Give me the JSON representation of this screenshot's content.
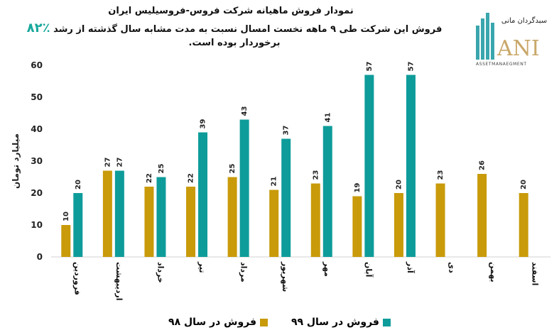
{
  "chart_data": {
    "type": "bar",
    "title": "نمودار فروش ماهیانه شرکت فروس-فروسیلیس ایران",
    "subtitle_before": "فروش این شرکت طی ۹ ماهه نخست امسال نسبت به مدت مشابه سال گذشته از رشد",
    "subtitle_highlight": "٪۸۲",
    "subtitle_after": "برخوردار بوده است.",
    "ylabel": "میلیارد تومان",
    "xlabel": "",
    "ylim": [
      0,
      60
    ],
    "yticks": [
      0,
      10,
      20,
      30,
      40,
      50,
      60
    ],
    "grid": false,
    "legend_position": "bottom",
    "categories": [
      "فروردین",
      "اردیبهشت",
      "خرداد",
      "تیر",
      "مرداد",
      "شهریور",
      "مهر",
      "آبان",
      "آذر",
      "دی",
      "بهمن",
      "اسفند"
    ],
    "series": [
      {
        "name": "فروش در سال ۹۸",
        "color": "#C99A0A",
        "values": [
          10,
          27,
          22,
          22,
          25,
          21,
          23,
          19,
          20,
          23,
          26,
          20
        ]
      },
      {
        "name": "فروش در سال ۹۹",
        "color": "#0E9C9A",
        "values": [
          20,
          27,
          25,
          39,
          43,
          37,
          41,
          57,
          57,
          null,
          null,
          null
        ]
      }
    ]
  },
  "logo": {
    "text_fa": "سبدگردان مانی",
    "text_en": "ANI",
    "tagline": "ASSETMANAEGMENT"
  }
}
